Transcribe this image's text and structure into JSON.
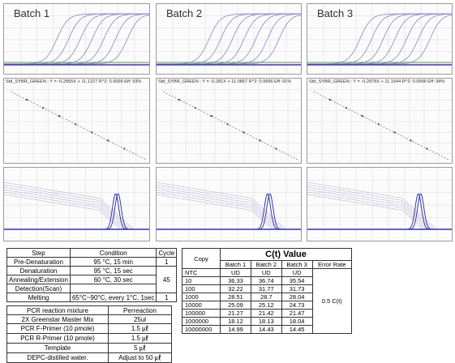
{
  "batches": [
    {
      "title": "Batch 1",
      "equation": "Std_SYBR_GREEN : Y = -0.2855X + 11.1227    R^2: 0.9999 Eff: 93%"
    },
    {
      "title": "Batch 2",
      "equation": "Std_SYBR_GREEN : Y = -0.281X + 11.0857    R^2: 0.9996 Eff: 91%"
    },
    {
      "title": "Batch 3",
      "equation": "Std_SYBR_GREEN : Y = -0.2878X + 11.1544    R^2: 0.9999 Eff: 94%"
    }
  ],
  "conditions": {
    "headers": [
      "Step",
      "Condition",
      "Cycle"
    ],
    "rows": [
      {
        "step": "Pre-Denaturation",
        "condition": "95 °C, 15 min",
        "cycle": "1"
      },
      {
        "step": "Denaturation",
        "condition": "95 °C, 15 sec"
      },
      {
        "step": "Annealing/Extension",
        "condition": "60 °C, 30 sec"
      },
      {
        "step": "Detection(Scan)",
        "condition": ""
      },
      {
        "step": "Melting",
        "condition": "65°C~90°C, every 1°C, 1sec",
        "cycle": "1"
      }
    ],
    "merged_cycle": "45"
  },
  "mixture": {
    "headers": [
      "PCR reaction mixture",
      "Perreaction"
    ],
    "rows": [
      {
        "item": "2X Greenstar Master Mix",
        "amount": "25ul"
      },
      {
        "item": "PCR F-Primer (10 pmole)",
        "amount": "1.5 ㎕"
      },
      {
        "item": "PCR R-Primer (10 pmole)",
        "amount": "1.5 ㎕"
      },
      {
        "item": "Template",
        "amount": "5 ㎕"
      },
      {
        "item": "DEPC-distilled water.",
        "amount": "Adjust to 50 ㎕"
      }
    ]
  },
  "ct_table": {
    "title": "C(t) Value",
    "copy_label": "Copy",
    "batch_headers": [
      "Batch 1",
      "Batch 2",
      "Batch 3"
    ],
    "error_rate_label": "Error Rate",
    "error_rate_value": "0.5 C(t)",
    "rows": [
      {
        "copy": "NTC",
        "b1": "UD",
        "b2": "UD",
        "b3": "UD"
      },
      {
        "copy": "10",
        "b1": "36.33",
        "b2": "36.74",
        "b3": "35.54"
      },
      {
        "copy": "100",
        "b1": "32.22",
        "b2": "31.77",
        "b3": "31.73"
      },
      {
        "copy": "1000",
        "b1": "28.51",
        "b2": "28.7",
        "b3": "28.04"
      },
      {
        "copy": "10000",
        "b1": "25.09",
        "b2": "25.12",
        "b3": "24.73"
      },
      {
        "copy": "100000",
        "b1": "21.27",
        "b2": "21.42",
        "b3": "21.47"
      },
      {
        "copy": "1000000",
        "b1": "18.12",
        "b2": "18.13",
        "b3": "18.04"
      },
      {
        "copy": "10000000",
        "b1": "14.99",
        "b2": "14.43",
        "b3": "14.45"
      }
    ]
  },
  "colors": {
    "curve": "#8c84c8",
    "curve_dark": "#3a3aa8",
    "baseline": "#3a7a3a",
    "grid": "#d8d8d8",
    "point": "#3050b0"
  }
}
